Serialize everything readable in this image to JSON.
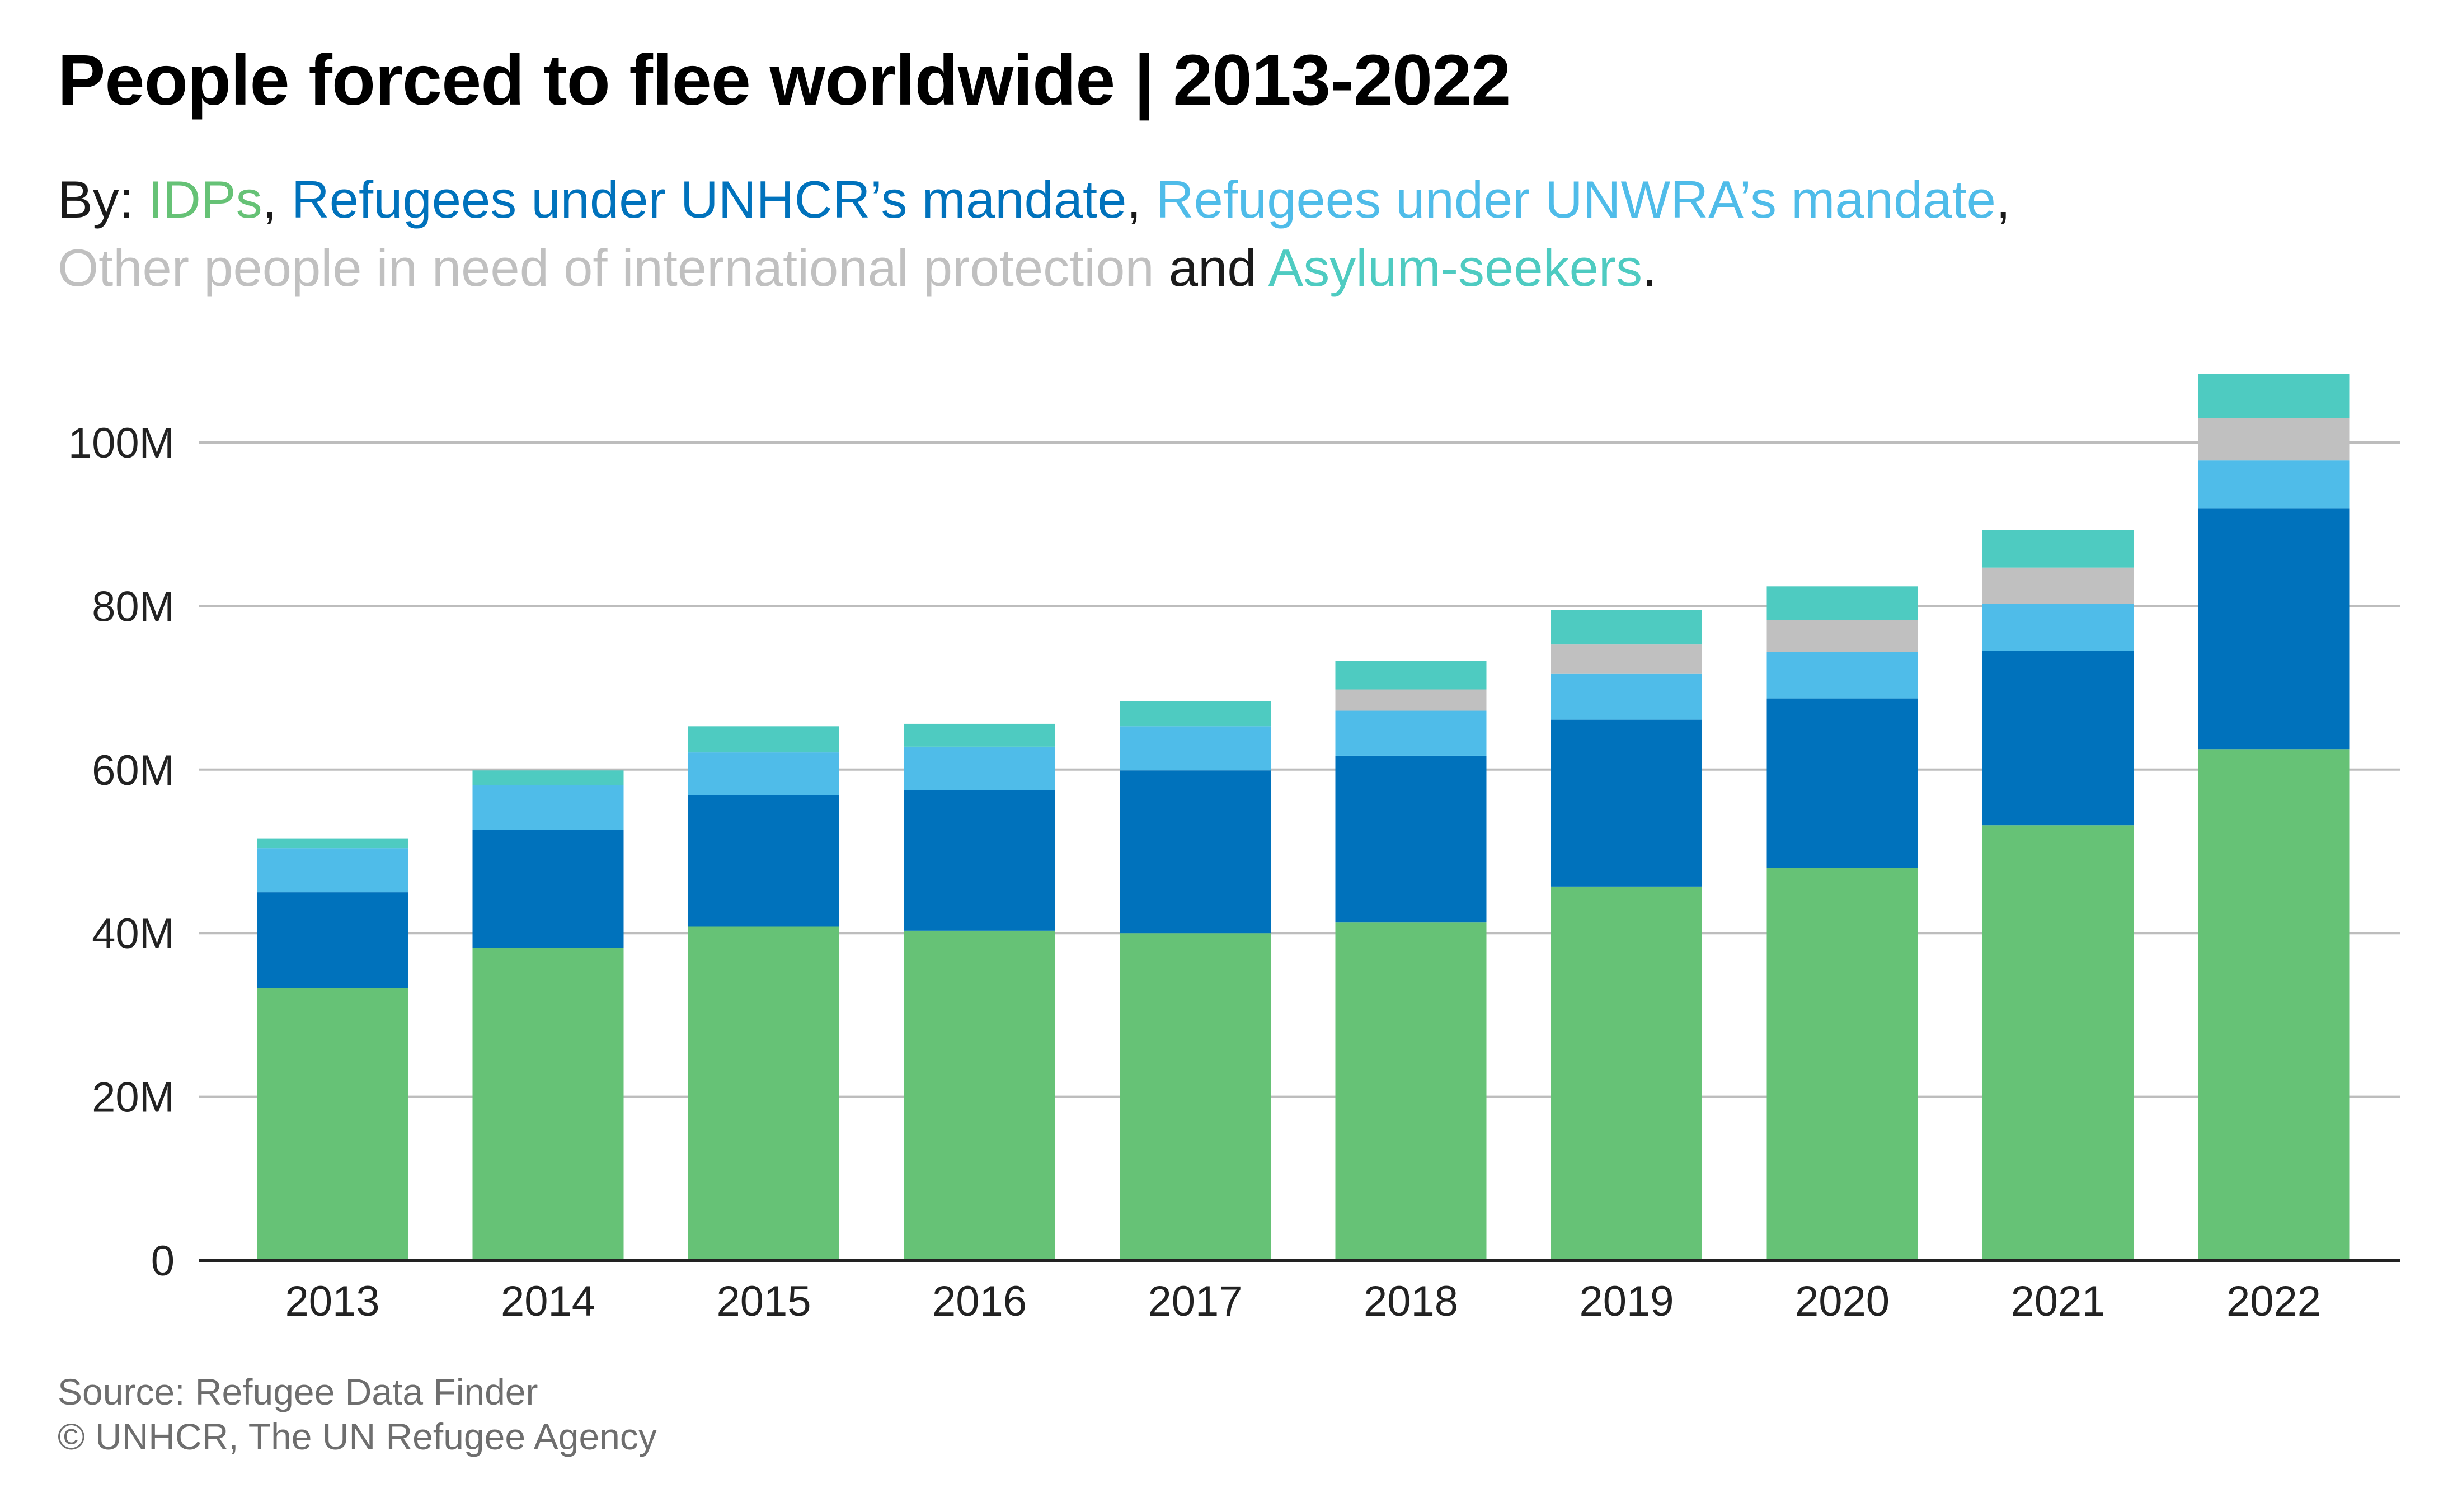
{
  "title": "People forced to flee worldwide | 2013-2022",
  "subtitle": {
    "prefix": "By: ",
    "sep1": ", ",
    "sep2": ", ",
    "sep3": ",",
    "sep4": " and ",
    "end": ".",
    "series_labels": [
      "IDPs",
      "Refugees under UNHCR’s mandate",
      "Refugees under UNWRA’s mandate",
      "Other people in need of international protection",
      "Asylum-seekers"
    ]
  },
  "footer": {
    "source": "Source: Refugee Data Finder",
    "copyright": "© UNHCR, The UN Refugee Agency"
  },
  "colors": {
    "idps": "#66c276",
    "unhcr": "#0072bc",
    "unrwa": "#4fbce9",
    "other": "#c0c0c0",
    "asylum": "#4ecbc1",
    "grid": "#bdbdbd",
    "axis": "#222222"
  },
  "chart_data": {
    "type": "bar",
    "stacked": true,
    "categories": [
      "2013",
      "2014",
      "2015",
      "2016",
      "2017",
      "2018",
      "2019",
      "2020",
      "2021",
      "2022"
    ],
    "series": [
      {
        "name": "IDPs",
        "values": [
          33.3,
          38.2,
          40.8,
          40.3,
          40.0,
          41.3,
          45.7,
          48.0,
          53.2,
          62.5
        ]
      },
      {
        "name": "Refugees under UNHCR’s mandate",
        "values": [
          11.7,
          14.4,
          16.1,
          17.2,
          19.9,
          20.4,
          20.4,
          20.7,
          21.3,
          29.4
        ]
      },
      {
        "name": "Refugees under UNWRA’s mandate",
        "values": [
          5.4,
          5.5,
          5.2,
          5.3,
          5.4,
          5.5,
          5.6,
          5.7,
          5.8,
          5.9
        ]
      },
      {
        "name": "Other people in need of international protection",
        "values": [
          0,
          0,
          0,
          0,
          0,
          2.6,
          3.6,
          3.9,
          4.4,
          5.2
        ]
      },
      {
        "name": "Asylum-seekers",
        "values": [
          1.2,
          1.8,
          3.2,
          2.8,
          3.1,
          3.5,
          4.2,
          4.1,
          4.6,
          5.4
        ]
      }
    ],
    "y_ticks": [
      0,
      20,
      40,
      60,
      80,
      100
    ],
    "y_tick_labels": [
      "0",
      "20M",
      "40M",
      "60M",
      "80M",
      "100M"
    ],
    "ylim": [
      0,
      110
    ],
    "grid": true,
    "legend": "in subtitle"
  }
}
